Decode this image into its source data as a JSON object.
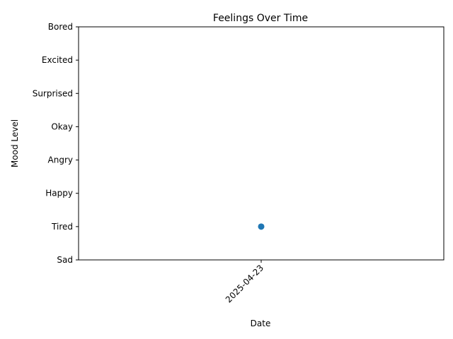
{
  "chart_data": {
    "type": "scatter",
    "title": "Feelings Over Time",
    "xlabel": "Date",
    "ylabel": "Mood Level",
    "x_categories": [
      "2025-04-23"
    ],
    "y_categories": [
      "Sad",
      "Tired",
      "Happy",
      "Angry",
      "Okay",
      "Surprised",
      "Excited",
      "Bored"
    ],
    "points": [
      {
        "x": "2025-04-23",
        "y": "Tired"
      }
    ],
    "marker_color": "#1f77b4",
    "x_tick_rotation_deg": 45,
    "grid": false,
    "legend": "none"
  }
}
